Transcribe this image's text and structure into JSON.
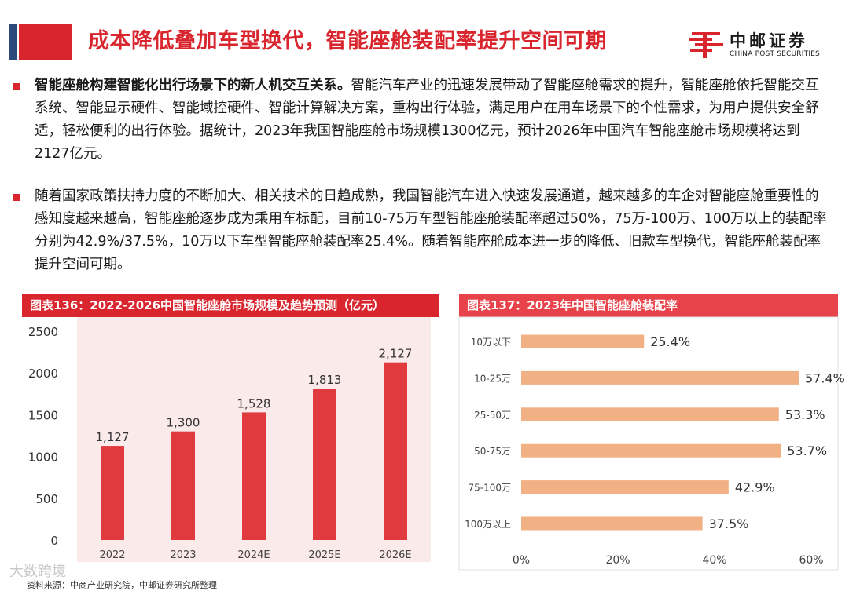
{
  "header": {
    "title": "成本降低叠加车型换代，智能座舱装配率提升空间可期",
    "logo_cn": "中邮证券",
    "logo_en": "CHINA POST SECURITIES",
    "colors": {
      "accent": "#d9262e",
      "navy": "#2e4a7d"
    }
  },
  "paragraphs": [
    {
      "lead": "智能座舱构建智能化出行场景下的新人机交互关系。",
      "text": "智能汽车产业的迅速发展带动了智能座舱需求的提升，智能座舱依托智能交互系统、智能显示硬件、智能域控硬件、智能计算解决方案，重构出行体验，满足用户在用车场景下的个性需求，为用户提供安全舒适，轻松便利的出行体验。据统计，2023年我国智能座舱市场规模1300亿元，预计2026年中国汽车智能座舱市场规模将达到2127亿元。"
    },
    {
      "lead": "",
      "text": "随着国家政策扶持力度的不断加大、相关技术的日趋成熟，我国智能汽车进入快速发展通道，越来越多的车企对智能座舱重要性的感知度越来越高，智能座舱逐步成为乘用车标配，目前10-75万车型智能座舱装配率超过50%，75万-100万、100万以上的装配率分别为42.9%/37.5%，10万以下车型智能座舱装配率25.4%。随着智能座舱成本进一步的降低、旧款车型换代，智能座舱装配率提升空间可期。"
    }
  ],
  "chart_data": [
    {
      "type": "bar",
      "title": "图表136：2022-2026中国智能座舱市场规模及趋势预测（亿元）",
      "categories": [
        "2022",
        "2023",
        "2024E",
        "2025E",
        "2026E"
      ],
      "values": [
        1127,
        1300,
        1528,
        1813,
        2127
      ],
      "value_labels": [
        "1,127",
        "1,300",
        "1,528",
        "1,813",
        "2,127"
      ],
      "ylim": [
        0,
        2500
      ],
      "yticks": [
        "0",
        "500",
        "1000",
        "1500",
        "2000",
        "2500"
      ],
      "grid": false,
      "bar_color": "#e03a3e",
      "header_color": "#d9262e",
      "plot_bg": "#fbeaea"
    },
    {
      "type": "bar",
      "orientation": "horizontal",
      "title": "图表137：2023年中国智能座舱装配率",
      "categories": [
        "10万以下",
        "10-25万",
        "25-50万",
        "50-75万",
        "75-100万",
        "100万以上"
      ],
      "values": [
        25.4,
        57.4,
        53.3,
        53.7,
        42.9,
        37.5
      ],
      "value_labels": [
        "25.4%",
        "57.4%",
        "53.3%",
        "53.7%",
        "42.9%",
        "37.5%"
      ],
      "xlim": [
        0,
        60
      ],
      "xticks": [
        "0%",
        "20%",
        "40%",
        "60%"
      ],
      "grid": false,
      "bar_color": "#f2b184",
      "header_color": "#e8434a"
    }
  ],
  "source_text": "资料来源：中商产业研究院，中邮证券研究所整理",
  "watermark": "大数跨境"
}
